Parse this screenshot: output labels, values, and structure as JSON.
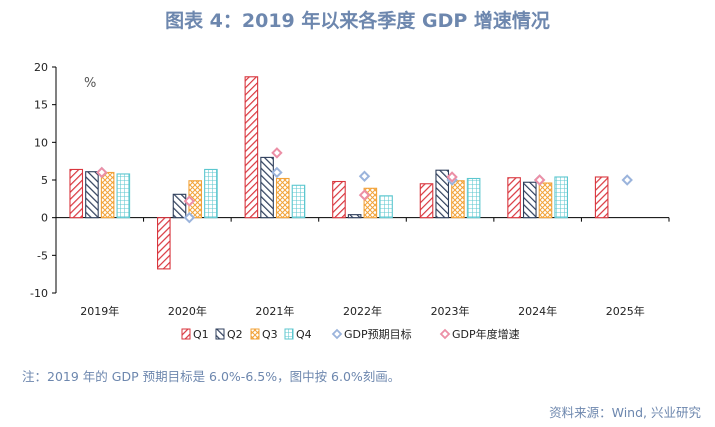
{
  "page": {
    "title": "图表 4：2019 年以来各季度 GDP 增速情况",
    "note": "注：2019 年的 GDP 预期目标是 6.0%-6.5%，图中按 6.0%刻画。",
    "source": "资料来源：Wind, 兴业研究"
  },
  "chart_data": {
    "type": "bar",
    "unit_label": "%",
    "categories": [
      "2019年",
      "2020年",
      "2021年",
      "2022年",
      "2023年",
      "2024年",
      "2025年"
    ],
    "ylim": [
      -10,
      20
    ],
    "yticks": [
      -10,
      -5,
      0,
      5,
      10,
      15,
      20
    ],
    "legend_position": "bottom",
    "series": [
      {
        "name": "Q1",
        "kind": "bar",
        "color": "#d9363e",
        "pattern": "diag-right",
        "values": [
          6.4,
          -6.8,
          18.7,
          4.8,
          4.5,
          5.3,
          5.4
        ]
      },
      {
        "name": "Q2",
        "kind": "bar",
        "color": "#2f3f5c",
        "pattern": "diag-left",
        "values": [
          6.1,
          3.1,
          8.0,
          0.4,
          6.3,
          4.7,
          null
        ]
      },
      {
        "name": "Q3",
        "kind": "bar",
        "color": "#f2a33a",
        "pattern": "crosshatch",
        "values": [
          6.0,
          4.9,
          5.2,
          3.9,
          4.9,
          4.6,
          null
        ]
      },
      {
        "name": "Q4",
        "kind": "bar",
        "color": "#5cc7cf",
        "pattern": "grid",
        "values": [
          5.8,
          6.4,
          4.3,
          2.9,
          5.2,
          5.4,
          null
        ]
      },
      {
        "name": "GDP预期目标",
        "kind": "marker",
        "color": "#9bb4dc",
        "values": [
          6.0,
          0.0,
          6.0,
          5.5,
          5.0,
          5.0,
          5.0
        ]
      },
      {
        "name": "GDP年度增速",
        "kind": "marker",
        "color": "#ec8fa6",
        "values": [
          6.0,
          2.2,
          8.6,
          3.0,
          5.4,
          5.0,
          null
        ]
      }
    ]
  }
}
